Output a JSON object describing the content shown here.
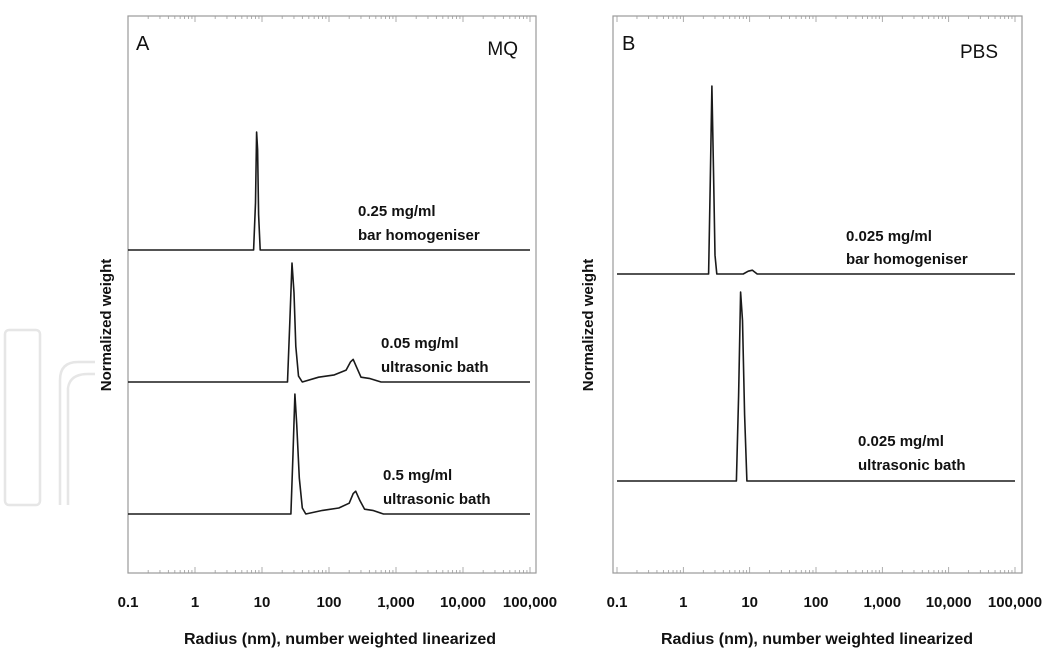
{
  "chart_data": [
    {
      "type": "line",
      "panel": "A",
      "medium": "MQ",
      "xlabel": "Radius (nm), number weighted linearized",
      "ylabel": "Normalized weight",
      "xscale": "log",
      "xlim": [
        0.1,
        100000
      ],
      "xticks": [
        "0.1",
        "1",
        "10",
        "100",
        "1,000",
        "10,000",
        "100,000"
      ],
      "grid": false,
      "series": [
        {
          "name": "0.25 mg/ml bar homogeniser",
          "label_lines": [
            "0.25 mg/ml",
            "bar homogeniser"
          ],
          "x": [
            0.1,
            7.5,
            8.0,
            8.3,
            8.6,
            8.9,
            9.4,
            100000
          ],
          "y": [
            0,
            0,
            0.4,
            1.0,
            0.85,
            0.3,
            0,
            0
          ]
        },
        {
          "name": "0.05 mg/ml ultrasonic bath",
          "label_lines": [
            "0.05 mg/ml",
            "ultrasonic bath"
          ],
          "x": [
            0.1,
            24,
            26,
            28,
            30,
            32,
            35,
            40,
            70,
            120,
            180,
            210,
            230,
            260,
            300,
            400,
            600,
            100000
          ],
          "y": [
            0,
            0,
            0.5,
            1.0,
            0.75,
            0.3,
            0.05,
            0,
            0.04,
            0.06,
            0.1,
            0.17,
            0.19,
            0.12,
            0.04,
            0.03,
            0,
            0
          ]
        },
        {
          "name": "0.5 mg/ml ultrasonic bath",
          "label_lines": [
            "0.5 mg/ml",
            "ultrasonic bath"
          ],
          "x": [
            0.1,
            27,
            29,
            31,
            33,
            36,
            40,
            45,
            80,
            140,
            200,
            230,
            250,
            290,
            340,
            450,
            650,
            100000
          ],
          "y": [
            0,
            0,
            0.5,
            1.0,
            0.75,
            0.3,
            0.05,
            0,
            0.03,
            0.05,
            0.09,
            0.17,
            0.19,
            0.11,
            0.04,
            0.03,
            0,
            0
          ]
        }
      ]
    },
    {
      "type": "line",
      "panel": "B",
      "medium": "PBS",
      "xlabel": "Radius (nm), number weighted linearized",
      "ylabel": "Normalized weight",
      "xscale": "log",
      "xlim": [
        0.1,
        100000
      ],
      "xticks": [
        "0.1",
        "1",
        "10",
        "100",
        "1,000",
        "10,000",
        "100,000"
      ],
      "grid": false,
      "series": [
        {
          "name": "0.025 mg/ml bar homogeniser",
          "label_lines": [
            "0.025 mg/ml",
            "bar homogeniser"
          ],
          "x": [
            0.1,
            2.4,
            2.55,
            2.7,
            2.85,
            3.0,
            3.2,
            8.0,
            9.5,
            11,
            13,
            100000
          ],
          "y": [
            0,
            0,
            0.5,
            1.0,
            0.55,
            0.1,
            0,
            0,
            0.015,
            0.02,
            0,
            0
          ]
        },
        {
          "name": "0.025 mg/ml ultrasonic bath",
          "label_lines": [
            "0.025 mg/ml",
            "ultrasonic bath"
          ],
          "x": [
            0.1,
            6.3,
            6.8,
            7.3,
            7.8,
            8.4,
            9.1,
            100000
          ],
          "y": [
            0,
            0,
            0.45,
            1.0,
            0.85,
            0.35,
            0,
            0
          ]
        }
      ]
    }
  ]
}
